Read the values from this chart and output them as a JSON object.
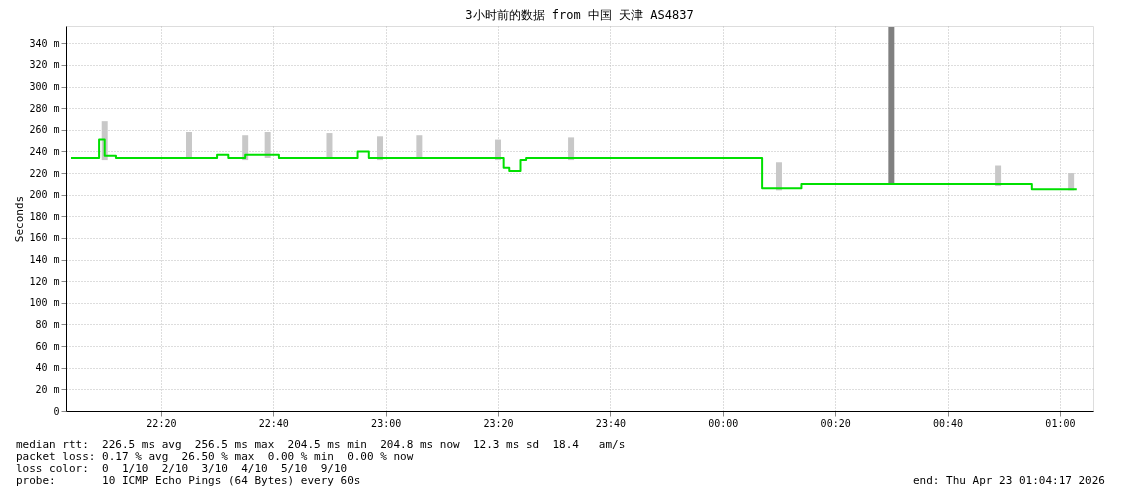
{
  "chart_data": {
    "type": "step",
    "title": "3小时前的数据 from 中国 天津 AS4837",
    "ylabel": "Seconds",
    "xlim": [
      "2026-04-22T22:04",
      "2026-04-23T01:05"
    ],
    "xticks": [
      {
        "value": "2026-04-22T22:20",
        "label": "22:20"
      },
      {
        "value": "2026-04-22T22:40",
        "label": "22:40"
      },
      {
        "value": "2026-04-22T23:00",
        "label": "23:00"
      },
      {
        "value": "2026-04-22T23:20",
        "label": "23:20"
      },
      {
        "value": "2026-04-22T23:40",
        "label": "23:40"
      },
      {
        "value": "2026-04-23T00:00",
        "label": "00:00"
      },
      {
        "value": "2026-04-23T00:20",
        "label": "00:20"
      },
      {
        "value": "2026-04-23T00:40",
        "label": "00:40"
      },
      {
        "value": "2026-04-23T01:00",
        "label": "01:00"
      }
    ],
    "ylim": [
      0,
      356
    ],
    "yticks": [
      0,
      {
        "value": 20,
        "label": "20 m"
      },
      {
        "value": 40,
        "label": "40 m"
      },
      {
        "value": 60,
        "label": "60 m"
      },
      {
        "value": 80,
        "label": "80 m"
      },
      {
        "value": 100,
        "label": "100 m"
      },
      {
        "value": 120,
        "label": "120 m"
      },
      {
        "value": 140,
        "label": "140 m"
      },
      {
        "value": 160,
        "label": "160 m"
      },
      {
        "value": 180,
        "label": "180 m"
      },
      {
        "value": 200,
        "label": "200 m"
      },
      {
        "value": 220,
        "label": "220 m"
      },
      {
        "value": 240,
        "label": "240 m"
      },
      {
        "value": 260,
        "label": "260 m"
      },
      {
        "value": 280,
        "label": "280 m"
      },
      {
        "value": 300,
        "label": "300 m"
      },
      {
        "value": 320,
        "label": "320 m"
      },
      {
        "value": 340,
        "label": "340 m"
      }
    ],
    "grid": true,
    "series": [
      {
        "type": "bar",
        "color": "#c8c8c8",
        "x": [
          "2026-04-22T22:10",
          "2026-04-22T22:25",
          "2026-04-22T22:35",
          "2026-04-22T22:39",
          "2026-04-22T22:50",
          "2026-04-22T22:59",
          "2026-04-22T23:06",
          "2026-04-22T23:20",
          "2026-04-22T23:33",
          "2026-04-23T00:10",
          "2026-04-23T00:49",
          "2026-04-23T01:02"
        ],
        "base": [
          232,
          234,
          232,
          234,
          233,
          232,
          233,
          232,
          232,
          204,
          208,
          204
        ],
        "values": [
          36,
          24,
          23,
          24,
          24,
          22,
          22,
          19,
          21,
          26,
          19,
          16
        ]
      },
      {
        "type": "bar",
        "color": "#808080",
        "x": [
          "2026-04-23T00:30"
        ],
        "base": [
          209
        ],
        "values": [
          146
        ]
      },
      {
        "color": "#00e000",
        "x": [
          "2026-04-22T22:04",
          "2026-04-22T22:09",
          "2026-04-22T22:10",
          "2026-04-22T22:12",
          "2026-04-22T22:30",
          "2026-04-22T22:32",
          "2026-04-22T22:35",
          "2026-04-22T22:41",
          "2026-04-22T22:55",
          "2026-04-22T22:57",
          "2026-04-22T23:21",
          "2026-04-22T23:22",
          "2026-04-22T23:24",
          "2026-04-22T23:25",
          "2026-04-23T00:07",
          "2026-04-23T00:14",
          "2026-04-23T00:55",
          "2026-04-23T01:03"
        ],
        "values": [
          234,
          251,
          236,
          234,
          237,
          234,
          237,
          234,
          240,
          234,
          225,
          222,
          232,
          234,
          206,
          210,
          205,
          205
        ]
      }
    ],
    "annotations": [
      "median rtt:  226.5 ms avg  256.5 ms max  204.5 ms min  204.8 ms now  12.3 ms sd  18.4   am/s",
      "packet loss: 0.17 % avg  26.50 % max  0.00 % min  0.00 % now",
      "loss color:  0  1/10  2/10  3/10  4/10  5/10  9/10",
      "probe:       10 ICMP Echo Pings (64 Bytes) every 60s",
      "end: Thu Apr 23 01:04:17 2026"
    ]
  }
}
